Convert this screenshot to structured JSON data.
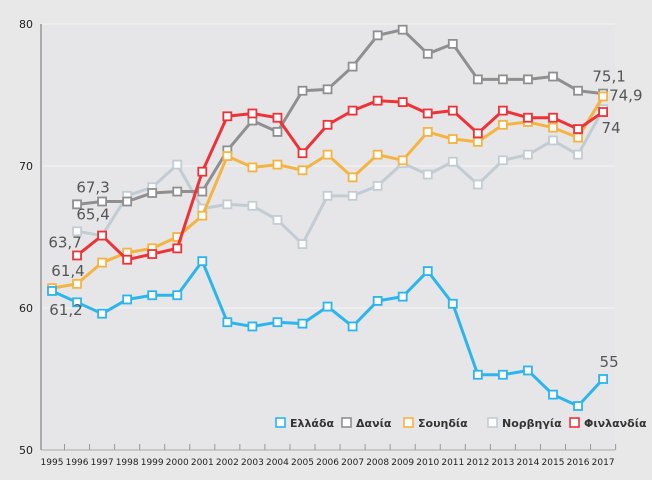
{
  "chart_data": {
    "type": "line",
    "title": "",
    "xlabel": "",
    "ylabel": "",
    "ylim": [
      50,
      80
    ],
    "yticks": [
      "50",
      "60",
      "70",
      "80"
    ],
    "x": [
      "1995",
      "1996",
      "1997",
      "1998",
      "1999",
      "2000",
      "2001",
      "2002",
      "2003",
      "2004",
      "2005",
      "2006",
      "2007",
      "2008",
      "2009",
      "2010",
      "2011",
      "2012",
      "2013",
      "2014",
      "2015",
      "2016",
      "2017"
    ],
    "legend_position": "bottom-right",
    "series": [
      {
        "name": "Ελλάδα",
        "color": "#2bb5ec",
        "values": [
          61.2,
          60.4,
          59.6,
          60.6,
          60.9,
          60.9,
          63.3,
          59.0,
          58.7,
          59.0,
          58.9,
          60.1,
          58.7,
          60.5,
          60.8,
          62.6,
          60.3,
          55.3,
          55.3,
          55.6,
          53.9,
          53.1,
          55.0
        ],
        "annotations": [
          {
            "index": 0,
            "text": "61,2",
            "pos": "below"
          },
          {
            "index": 22,
            "text": "55",
            "pos": "above"
          }
        ]
      },
      {
        "name": "Δανία",
        "color": "#8f8f8f",
        "values": [
          null,
          67.3,
          67.5,
          67.5,
          68.1,
          68.2,
          68.2,
          71.1,
          73.2,
          72.4,
          75.3,
          75.4,
          77.0,
          79.2,
          79.6,
          77.9,
          78.6,
          76.1,
          76.1,
          76.1,
          76.3,
          75.3,
          75.1
        ],
        "annotations": [
          {
            "index": 1,
            "text": "67,3",
            "pos": "above"
          },
          {
            "index": 22,
            "text": "75,1",
            "pos": "above"
          }
        ]
      },
      {
        "name": "Σουηδία",
        "color": "#f5b342",
        "values": [
          61.4,
          61.7,
          63.2,
          63.9,
          64.2,
          65.0,
          66.5,
          70.7,
          69.9,
          70.1,
          69.7,
          70.8,
          69.2,
          70.8,
          70.4,
          72.4,
          71.9,
          71.7,
          72.9,
          73.1,
          72.7,
          72.0,
          74.9
        ],
        "annotations": [
          {
            "index": 0,
            "text": "61,4",
            "pos": "above"
          },
          {
            "index": 22,
            "text": "74,9",
            "pos": "right"
          }
        ]
      },
      {
        "name": "Νορβηγία",
        "color": "#c2ccd3",
        "values": [
          null,
          65.4,
          65.1,
          67.9,
          68.5,
          70.1,
          67.0,
          67.3,
          67.2,
          66.2,
          64.5,
          67.9,
          67.9,
          68.6,
          70.2,
          69.4,
          70.3,
          68.7,
          70.4,
          70.8,
          71.8,
          70.8,
          74.0
        ],
        "annotations": [
          {
            "index": 1,
            "text": "65,4",
            "pos": "above"
          },
          {
            "index": 22,
            "text": "74",
            "pos": "below"
          }
        ]
      },
      {
        "name": "Φινλανδία",
        "color": "#ee3338",
        "values": [
          null,
          63.7,
          65.1,
          63.4,
          63.8,
          64.2,
          69.6,
          73.5,
          73.7,
          73.4,
          70.9,
          72.9,
          73.9,
          74.6,
          74.5,
          73.7,
          73.9,
          72.3,
          73.9,
          73.4,
          73.4,
          72.6,
          73.8
        ],
        "annotations": [
          {
            "index": 1,
            "text": "63,7",
            "pos": "above-left"
          }
        ]
      }
    ]
  }
}
